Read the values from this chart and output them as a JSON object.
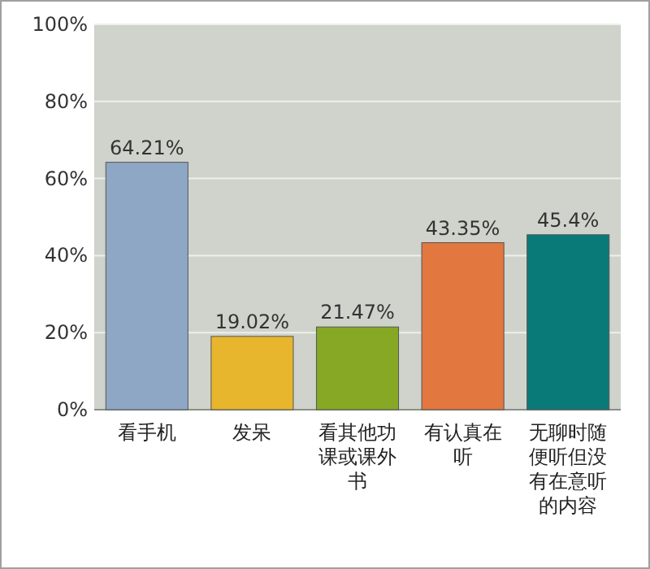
{
  "chart_data": {
    "type": "bar",
    "categories": [
      "看手机",
      "发呆",
      "看其他功课或课外书",
      "有认真在听",
      "无聊时随便听但没有在意听的内容"
    ],
    "values": [
      64.21,
      19.02,
      21.47,
      43.35,
      45.4
    ],
    "colors": [
      "#8ea7c4",
      "#e8b62c",
      "#86a824",
      "#e2773f",
      "#0a7a78"
    ],
    "value_labels": [
      "64.21%",
      "19.02%",
      "21.47%",
      "43.35%",
      "45.4%"
    ],
    "ylim": [
      0,
      100
    ],
    "yticks": [
      {
        "value": 0,
        "label": "0%"
      },
      {
        "value": 20,
        "label": "20%"
      },
      {
        "value": 40,
        "label": "40%"
      },
      {
        "value": 60,
        "label": "60%"
      },
      {
        "value": 80,
        "label": "80%"
      },
      {
        "value": 100,
        "label": "100%"
      }
    ],
    "grid": "y"
  }
}
